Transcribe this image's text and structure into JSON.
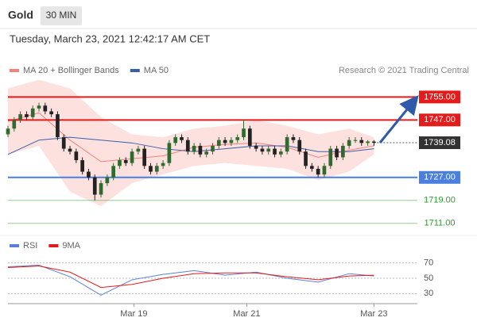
{
  "header": {
    "title": "Gold",
    "interval": "30 MIN",
    "timestamp": "Tuesday, March 23, 2021 12:42:17 AM CET",
    "attribution": "Research © 2021 Trading Central"
  },
  "chart_data": [
    {
      "type": "candlestick",
      "xlim": [
        0,
        66
      ],
      "ylim": [
        1709,
        1762
      ],
      "up_color": "#2f6b2f",
      "down_color": "#222222",
      "open": [
        1742,
        1744,
        1747,
        1749,
        1748,
        1751,
        1752,
        1750,
        1749,
        1741,
        1737,
        1736,
        1733,
        1729,
        1727,
        1721,
        1725,
        1727,
        1731,
        1733,
        1732,
        1736,
        1737,
        1731,
        1729,
        1731,
        1732,
        1739,
        1741,
        1740,
        1736,
        1738,
        1735,
        1736,
        1738,
        1740,
        1739,
        1740,
        1741,
        1744,
        1738,
        1737,
        1736,
        1737,
        1735,
        1736,
        1741,
        1740,
        1736,
        1731,
        1730,
        1728,
        1731,
        1737,
        1734,
        1738,
        1740,
        1740,
        1739,
        1739.5
      ],
      "high": [
        1745,
        1748,
        1750,
        1750,
        1752,
        1753,
        1753,
        1751,
        1750,
        1742,
        1738,
        1737,
        1734,
        1730,
        1728,
        1726,
        1728,
        1732,
        1734,
        1734,
        1737,
        1738,
        1738,
        1732,
        1732,
        1733,
        1740,
        1742,
        1742,
        1741,
        1739,
        1739,
        1737,
        1739,
        1741,
        1741,
        1741,
        1742,
        1747,
        1745,
        1739,
        1738,
        1738,
        1738,
        1737,
        1742,
        1742,
        1741,
        1737,
        1732,
        1731,
        1732,
        1738,
        1738,
        1739,
        1741,
        1741,
        1741,
        1740,
        1740
      ],
      "low": [
        1741,
        1743,
        1746,
        1747,
        1747,
        1750,
        1749,
        1748,
        1740,
        1736,
        1735,
        1732,
        1728,
        1726,
        1719,
        1720,
        1724,
        1726,
        1730,
        1731,
        1731,
        1735,
        1730,
        1728,
        1728,
        1730,
        1731,
        1738,
        1739,
        1735,
        1735,
        1734,
        1734,
        1735,
        1737,
        1738,
        1738,
        1739,
        1740,
        1737,
        1736,
        1735,
        1735,
        1734,
        1734,
        1735,
        1739,
        1735,
        1730,
        1729,
        1727,
        1727,
        1730,
        1733,
        1733,
        1737,
        1739,
        1738,
        1738,
        1738
      ],
      "close": [
        1744,
        1747,
        1749,
        1748,
        1751,
        1752,
        1750,
        1749,
        1741,
        1737,
        1736,
        1733,
        1729,
        1727,
        1721,
        1725,
        1727,
        1731,
        1733,
        1732,
        1736,
        1737,
        1731,
        1729,
        1731,
        1732,
        1739,
        1741,
        1740,
        1736,
        1738,
        1735,
        1736,
        1738,
        1740,
        1739,
        1740,
        1741,
        1744,
        1738,
        1737,
        1736,
        1737,
        1735,
        1736,
        1741,
        1740,
        1736,
        1731,
        1730,
        1728,
        1731,
        1737,
        1734,
        1738,
        1740,
        1740,
        1739,
        1739.5,
        1739.08
      ],
      "series": [
        {
          "name": "MA 20 + Bollinger Bands",
          "color": "#f4827c",
          "band_color": "#fbd9d7",
          "x": [
            0,
            5,
            10,
            15,
            20,
            25,
            30,
            35,
            40,
            45,
            50,
            55,
            59
          ],
          "values": [
            1746.5,
            1749.5,
            1740,
            1732.5,
            1733.5,
            1734.5,
            1737.5,
            1738.5,
            1739,
            1737.5,
            1734,
            1736.5,
            1738
          ],
          "upper": [
            1758,
            1761,
            1758,
            1748,
            1742,
            1741,
            1744,
            1745,
            1747,
            1745,
            1742,
            1744,
            1741
          ],
          "lower": [
            1735,
            1738,
            1722,
            1717,
            1725,
            1728,
            1731,
            1732,
            1731,
            1730,
            1726,
            1729,
            1735
          ]
        },
        {
          "name": "MA 50",
          "color": "#3a5fa8",
          "x": [
            0,
            5,
            10,
            15,
            20,
            25,
            30,
            35,
            40,
            45,
            50,
            55,
            59
          ],
          "values": [
            1735,
            1740,
            1741,
            1740,
            1739,
            1737,
            1736,
            1737,
            1738,
            1738,
            1736,
            1736,
            1737
          ]
        }
      ],
      "levels": [
        {
          "value": 1755,
          "label": "1755.00",
          "color": "#e31b1b",
          "style": "box"
        },
        {
          "value": 1747,
          "label": "1747.00",
          "color": "#e31b1b",
          "style": "box"
        },
        {
          "value": 1739.08,
          "label": "1739.08",
          "color": "#333333",
          "style": "current"
        },
        {
          "value": 1727,
          "label": "1727.00",
          "color": "#4a7fe0",
          "style": "box"
        },
        {
          "value": 1719,
          "label": "1719.00",
          "color": "#2e9a2e",
          "style": "text"
        },
        {
          "value": 1711,
          "label": "1711.00",
          "color": "#2e9a2e",
          "style": "text"
        }
      ]
    },
    {
      "type": "line",
      "xlim": [
        0,
        66
      ],
      "ylim": [
        20,
        80
      ],
      "yticks": [
        30,
        50,
        70
      ],
      "xticks": [
        {
          "value": 20.3,
          "label": "Mar 19"
        },
        {
          "value": 38.5,
          "label": "Mar 21"
        },
        {
          "value": 59,
          "label": "Mar 23"
        }
      ],
      "x": [
        0,
        5,
        10,
        15,
        20,
        25,
        30,
        35,
        40,
        45,
        50,
        55,
        59
      ],
      "series": [
        {
          "name": "RSI",
          "color": "#5b7fd8",
          "values": [
            65,
            67,
            52,
            28,
            48,
            55,
            60,
            54,
            58,
            50,
            45,
            56,
            53
          ]
        },
        {
          "name": "9MA",
          "color": "#e31b1b",
          "values": [
            64,
            66,
            58,
            38,
            42,
            50,
            56,
            57,
            57,
            52,
            48,
            53,
            54
          ]
        }
      ]
    }
  ]
}
